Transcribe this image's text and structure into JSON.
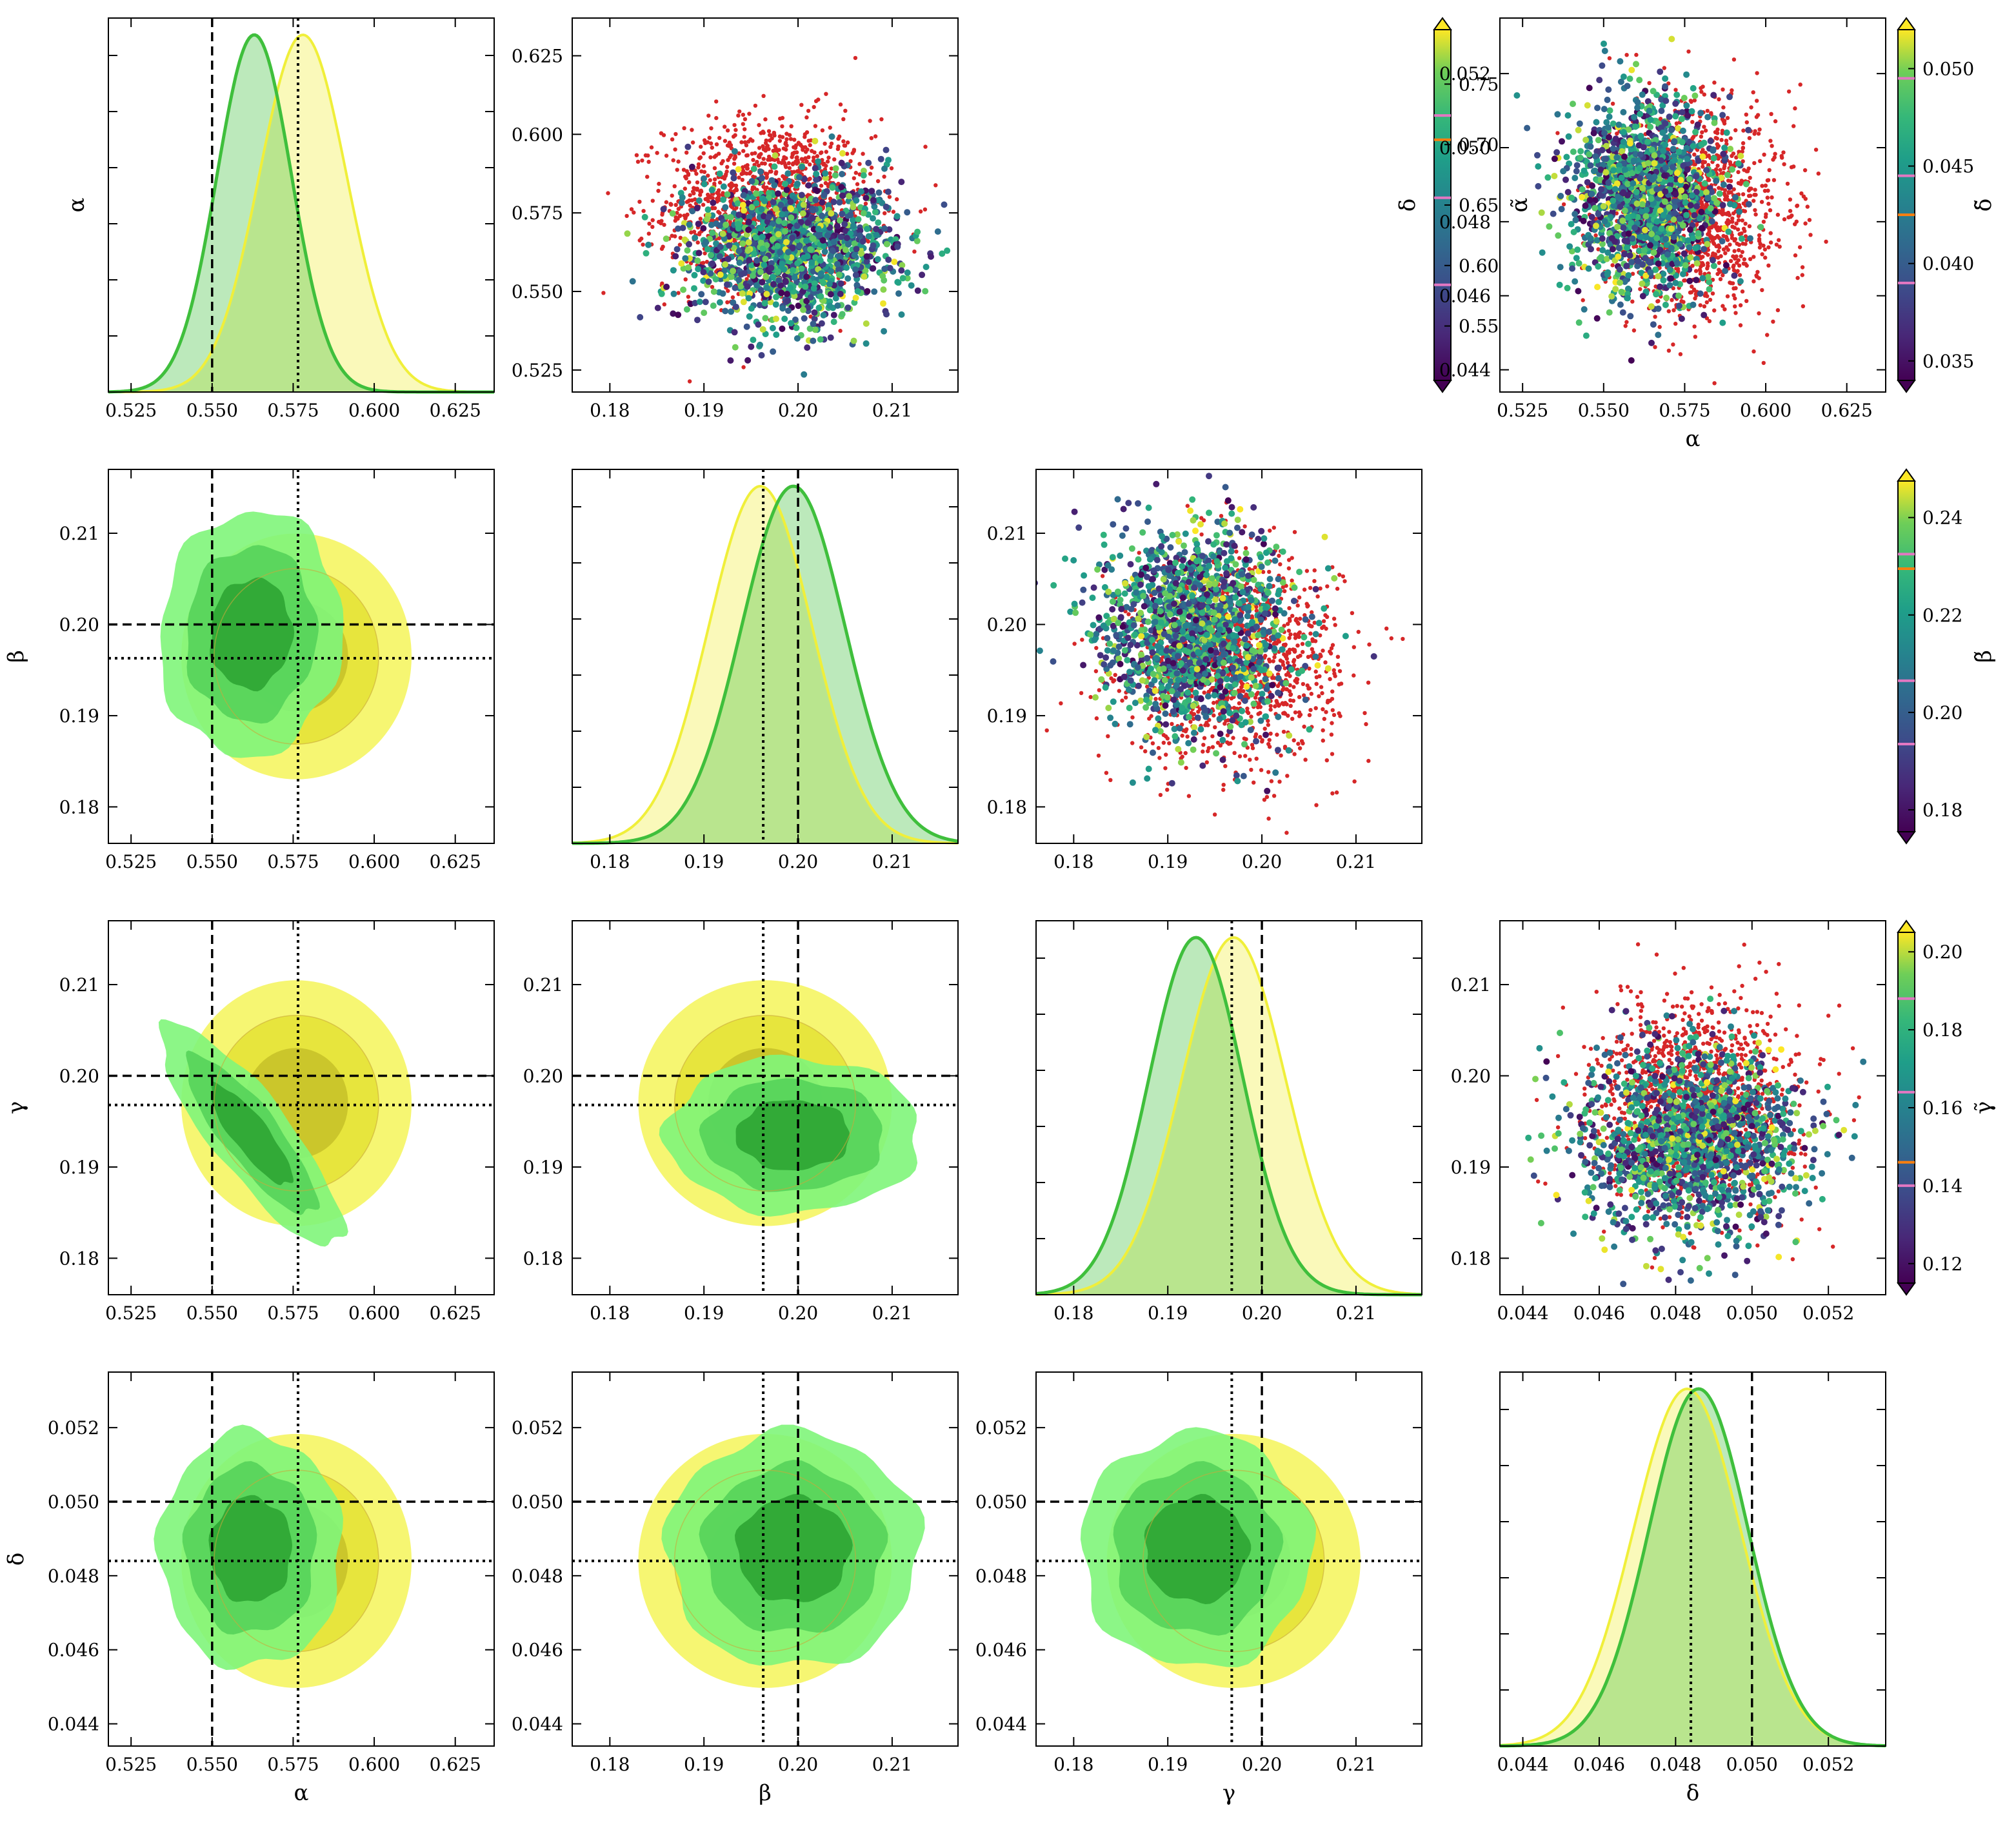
{
  "colors": {
    "yellow": "#f0ef3a",
    "green": "#3fbf3c",
    "lightgreen": "#7fe07a",
    "red": "#d62728",
    "sample_red": "#d62728",
    "axis": "#000000"
  },
  "chart_data": {
    "type": "corner",
    "params": [
      {
        "symbol": "α",
        "name": "alpha",
        "range": [
          0.518,
          0.637
        ],
        "ticks": [
          0.525,
          0.55,
          0.575,
          0.6,
          0.625
        ],
        "tick_labels": [
          "0.525",
          "0.550",
          "0.575",
          "0.600",
          "0.625"
        ],
        "true": 0.55,
        "estimate": 0.5765
      },
      {
        "symbol": "β",
        "name": "beta",
        "range": [
          0.176,
          0.217
        ],
        "ticks": [
          0.18,
          0.19,
          0.2,
          0.21
        ],
        "tick_labels": [
          "0.18",
          "0.19",
          "0.20",
          "0.21"
        ],
        "true": 0.2,
        "estimate": 0.1963
      },
      {
        "symbol": "γ",
        "name": "gamma",
        "range": [
          0.176,
          0.217
        ],
        "ticks": [
          0.18,
          0.19,
          0.2,
          0.21
        ],
        "tick_labels": [
          "0.18",
          "0.19",
          "0.20",
          "0.21"
        ],
        "true": 0.2,
        "estimate": 0.1968
      },
      {
        "symbol": "δ",
        "name": "delta",
        "range": [
          0.0434,
          0.0535
        ],
        "ticks": [
          0.044,
          0.046,
          0.048,
          0.05,
          0.052
        ],
        "tick_labels": [
          "0.044",
          "0.046",
          "0.048",
          "0.050",
          "0.052"
        ],
        "true": 0.05,
        "estimate": 0.0484
      }
    ],
    "diag_1d": [
      {
        "param": "α",
        "yellow": {
          "mean": 0.578,
          "sd": 0.0135
        },
        "green": {
          "mean": 0.563,
          "sd": 0.0115
        }
      },
      {
        "param": "β",
        "yellow": {
          "mean": 0.196,
          "sd": 0.0055
        },
        "green": {
          "mean": 0.1995,
          "sd": 0.0055
        }
      },
      {
        "param": "γ",
        "yellow": {
          "mean": 0.197,
          "sd": 0.0055
        },
        "green": {
          "mean": 0.193,
          "sd": 0.005
        }
      },
      {
        "param": "δ",
        "yellow": {
          "mean": 0.0483,
          "sd": 0.0014
        },
        "green": {
          "mean": 0.0486,
          "sd": 0.0013
        }
      }
    ],
    "contours_2d": [
      {
        "x": "α",
        "y": "β",
        "yellow": {
          "cx": 0.576,
          "cy": 0.1965,
          "sx": 0.0145,
          "sy": 0.0055,
          "rho": 0
        },
        "green": {
          "cx": 0.562,
          "cy": 0.199,
          "sx": 0.0115,
          "sy": 0.0055,
          "rho": 0.05
        }
      },
      {
        "x": "α",
        "y": "γ",
        "yellow": {
          "cx": 0.576,
          "cy": 0.197,
          "sx": 0.0145,
          "sy": 0.0055,
          "rho": 0
        },
        "green": {
          "cx": 0.562,
          "cy": 0.1935,
          "sx": 0.0115,
          "sy": 0.005,
          "rho": -0.85
        }
      },
      {
        "x": "β",
        "y": "γ",
        "yellow": {
          "cx": 0.1965,
          "cy": 0.197,
          "sx": 0.0055,
          "sy": 0.0055,
          "rho": 0
        },
        "green": {
          "cx": 0.1995,
          "cy": 0.1935,
          "sx": 0.0055,
          "sy": 0.0035,
          "rho": 0
        }
      },
      {
        "x": "α",
        "y": "δ",
        "yellow": {
          "cx": 0.576,
          "cy": 0.0484,
          "sx": 0.0145,
          "sy": 0.0014,
          "rho": 0
        },
        "green": {
          "cx": 0.562,
          "cy": 0.0487,
          "sx": 0.0115,
          "sy": 0.0013,
          "rho": 0
        }
      },
      {
        "x": "β",
        "y": "δ",
        "yellow": {
          "cx": 0.1965,
          "cy": 0.0484,
          "sx": 0.0055,
          "sy": 0.0014,
          "rho": 0
        },
        "green": {
          "cx": 0.1995,
          "cy": 0.0487,
          "sx": 0.0055,
          "sy": 0.0013,
          "rho": 0
        }
      },
      {
        "x": "γ",
        "y": "δ",
        "yellow": {
          "cx": 0.197,
          "cy": 0.0484,
          "sx": 0.0055,
          "sy": 0.0014,
          "rho": 0
        },
        "green": {
          "cx": 0.193,
          "cy": 0.0487,
          "sx": 0.005,
          "sy": 0.0013,
          "rho": 0
        }
      }
    ],
    "scatter_panels": [
      {
        "x": "β",
        "y": "α",
        "color_label": "α̃",
        "xrange": [
          0.176,
          0.217
        ],
        "yrange": [
          0.518,
          0.637
        ],
        "yticks": [
          0.525,
          0.55,
          0.575,
          0.6,
          0.625
        ],
        "ytick_labels": [
          "0.525",
          "0.550",
          "0.575",
          "0.600",
          "0.625"
        ],
        "xticks": [
          0.18,
          0.19,
          0.2,
          0.21
        ],
        "xtick_labels": [
          "0.18",
          "0.19",
          "0.20",
          "0.21"
        ],
        "red": {
          "cx": 0.197,
          "cy": 0.578,
          "sx": 0.0055,
          "sy": 0.0135
        },
        "colored": {
          "cx": 0.1995,
          "cy": 0.563,
          "sx": 0.0055,
          "sy": 0.0115
        },
        "cbar_range": [
          0.505,
          0.795
        ],
        "cbar_ticks": [
          0.55,
          0.6,
          0.65,
          0.7,
          0.75
        ],
        "cbar_tick_labels": [
          "0.55",
          "0.60",
          "0.65",
          "0.70",
          "0.75"
        ],
        "cbar_pink_marks": [
          0.584,
          0.656,
          0.724
        ],
        "cbar_orange_mark": 0.704
      },
      {
        "x": "γ",
        "y": "β",
        "color_label": "β̃",
        "xrange": [
          0.176,
          0.217
        ],
        "yrange": [
          0.176,
          0.217
        ],
        "yticks": [
          0.18,
          0.19,
          0.2,
          0.21
        ],
        "ytick_labels": [
          "0.18",
          "0.19",
          "0.20",
          "0.21"
        ],
        "xticks": [
          0.18,
          0.19,
          0.2,
          0.21
        ],
        "xtick_labels": [
          "0.18",
          "0.19",
          "0.20",
          "0.21"
        ],
        "red": {
          "cx": 0.197,
          "cy": 0.1965,
          "sx": 0.0055,
          "sy": 0.0055
        },
        "colored": {
          "cx": 0.193,
          "cy": 0.1995,
          "sx": 0.005,
          "sy": 0.0055
        },
        "cbar_range": [
          0.1755,
          0.2475
        ],
        "cbar_ticks": [
          0.18,
          0.2,
          0.22,
          0.24
        ],
        "cbar_tick_labels": [
          "0.18",
          "0.20",
          "0.22",
          "0.24"
        ],
        "cbar_pink_marks": [
          0.1935,
          0.2065,
          0.2325
        ],
        "cbar_orange_mark": 0.2295
      },
      {
        "x": "δ",
        "y": "γ",
        "color_label": "γ̃",
        "xrange": [
          0.0434,
          0.0535
        ],
        "yrange": [
          0.176,
          0.217
        ],
        "yticks": [
          0.18,
          0.19,
          0.2,
          0.21
        ],
        "ytick_labels": [
          "0.18",
          "0.19",
          "0.20",
          "0.21"
        ],
        "xticks": [
          0.044,
          0.046,
          0.048,
          0.05,
          0.052
        ],
        "xtick_labels": [
          "0.044",
          "0.046",
          "0.048",
          "0.050",
          "0.052"
        ],
        "red": {
          "cx": 0.0486,
          "cy": 0.197,
          "sx": 0.0013,
          "sy": 0.0055
        },
        "colored": {
          "cx": 0.0484,
          "cy": 0.193,
          "sx": 0.0014,
          "sy": 0.005
        },
        "cbar_range": [
          0.115,
          0.205
        ],
        "cbar_ticks": [
          0.12,
          0.14,
          0.16,
          0.18,
          0.2
        ],
        "cbar_tick_labels": [
          "0.12",
          "0.14",
          "0.16",
          "0.18",
          "0.20"
        ],
        "cbar_pink_marks": [
          0.14,
          0.164,
          0.188
        ],
        "cbar_orange_mark": 0.146
      },
      {
        "x": "α",
        "y": "δ",
        "color_label": "δ̃",
        "xrange": [
          0.518,
          0.637
        ],
        "yrange": [
          0.0434,
          0.0535
        ],
        "yticks": [
          0.044,
          0.046,
          0.048,
          0.05,
          0.052
        ],
        "ytick_labels": [
          "0.044",
          "0.046",
          "0.048",
          "0.050",
          "0.052"
        ],
        "xticks": [
          0.525,
          0.55,
          0.575,
          0.6,
          0.625
        ],
        "xtick_labels": [
          "0.525",
          "0.550",
          "0.575",
          "0.600",
          "0.625"
        ],
        "xlabel": "α",
        "red": {
          "cx": 0.578,
          "cy": 0.0484,
          "sx": 0.0135,
          "sy": 0.0014
        },
        "colored": {
          "cx": 0.563,
          "cy": 0.0487,
          "sx": 0.0115,
          "sy": 0.0013
        },
        "cbar_range": [
          0.034,
          0.052
        ],
        "cbar_ticks": [
          0.035,
          0.04,
          0.045,
          0.05
        ],
        "cbar_tick_labels": [
          "0.035",
          "0.040",
          "0.045",
          "0.050"
        ],
        "cbar_pink_marks": [
          0.039,
          0.0445,
          0.0495
        ],
        "cbar_orange_mark": 0.0425
      }
    ],
    "axis_labels": {
      "bottom": [
        "α",
        "β",
        "γ",
        "δ"
      ],
      "left": [
        "α",
        "β",
        "γ",
        "δ"
      ]
    }
  }
}
